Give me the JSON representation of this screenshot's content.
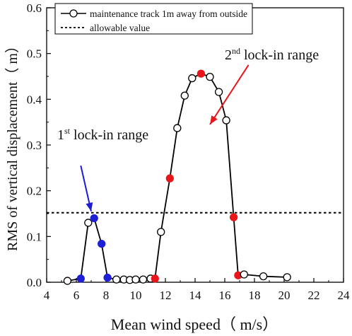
{
  "chart_data": {
    "type": "scatter",
    "xlabel": "Mean wind speed（ m/s）",
    "ylabel": "RMS of vertical displacement（ m）",
    "xlim": [
      4,
      24
    ],
    "ylim": [
      0,
      0.6
    ],
    "xticks": [
      "4",
      "6",
      "8",
      "10",
      "12",
      "14",
      "16",
      "18",
      "20",
      "22",
      "24"
    ],
    "yticks": [
      "0.0",
      "0.1",
      "0.2",
      "0.3",
      "0.4",
      "0.5",
      "0.6"
    ],
    "grid": false,
    "legend_position": "top-left",
    "series": [
      {
        "name": "maintenance track 1m away from outside",
        "style": "line-markers",
        "color": "#000000",
        "x": [
          5.4,
          6.3,
          6.8,
          7.2,
          7.7,
          8.1,
          8.7,
          9.2,
          9.6,
          10.0,
          10.5,
          11.0,
          11.3,
          11.7,
          12.3,
          12.8,
          13.3,
          13.8,
          14.4,
          15.0,
          15.6,
          16.1,
          16.6,
          16.9,
          17.3,
          18.6,
          20.2
        ],
        "y": [
          0.003,
          0.008,
          0.13,
          0.14,
          0.084,
          0.01,
          0.006,
          0.006,
          0.005,
          0.006,
          0.006,
          0.008,
          0.008,
          0.11,
          0.227,
          0.337,
          0.408,
          0.446,
          0.456,
          0.449,
          0.416,
          0.354,
          0.142,
          0.015,
          0.017,
          0.013,
          0.011
        ],
        "marker_fill": [
          "white",
          "blue",
          "white",
          "blue",
          "blue",
          "blue",
          "white",
          "white",
          "white",
          "white",
          "white",
          "white",
          "red",
          "white",
          "red",
          "white",
          "white",
          "white",
          "red",
          "white",
          "white",
          "white",
          "red",
          "red",
          "white",
          "white",
          "white"
        ]
      },
      {
        "name": "allowable value",
        "style": "dashed",
        "color": "#000000",
        "y_constant": 0.152
      }
    ],
    "annotations": [
      {
        "base": "1",
        "sup": "st",
        "text": " lock-in range",
        "color": "#1c1cd6",
        "from": [
          6.3,
          0.255
        ],
        "to": [
          7.0,
          0.155
        ]
      },
      {
        "base": "2",
        "sup": "nd",
        "text": " lock-in range",
        "color": "#e8161b",
        "from": [
          17.6,
          0.475
        ],
        "to": [
          15.0,
          0.345
        ]
      }
    ],
    "colors": {
      "blue": "#1f1fd6",
      "red": "#e8161b",
      "axis": "#000000"
    }
  }
}
